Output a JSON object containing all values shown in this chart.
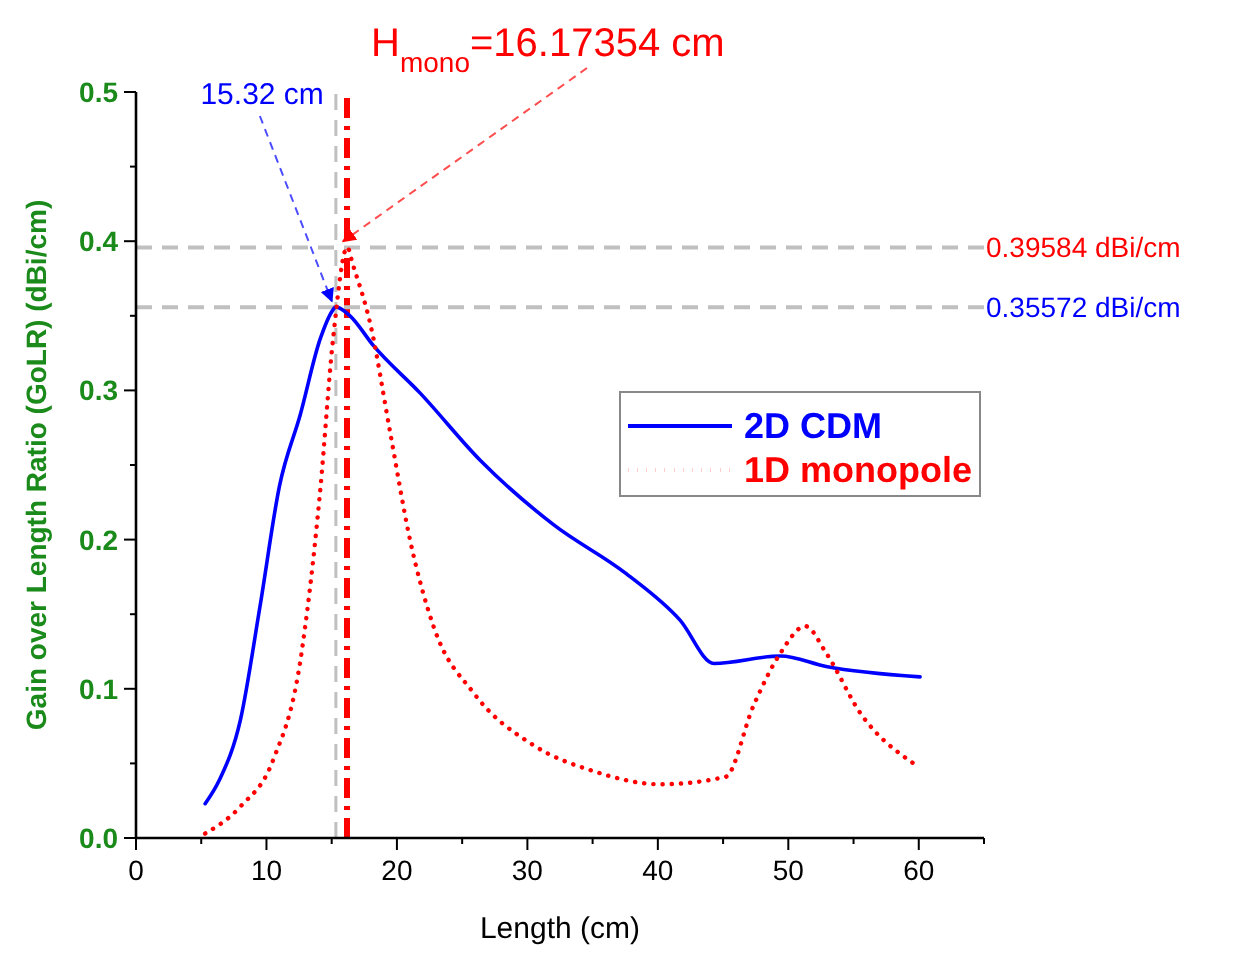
{
  "chart_data": {
    "type": "line",
    "xlabel": "Length (cm)",
    "ylabel": "Gain over Length Ratio (GoLR) (dBi/cm)",
    "xlim": [
      0,
      65
    ],
    "ylim": [
      0,
      0.5
    ],
    "xticks": [
      0,
      {
        "value": 5,
        "label": null
      },
      10,
      {
        "value": 15,
        "label": null
      },
      20,
      {
        "value": 25,
        "label": null
      },
      30,
      {
        "value": 35,
        "label": null
      },
      40,
      {
        "value": 45,
        "label": null
      },
      50,
      {
        "value": 55,
        "label": null
      },
      60,
      {
        "value": 65,
        "label": null
      }
    ],
    "yticks": [
      {
        "value": 0,
        "label": "0.0"
      },
      {
        "value": 0.05,
        "label": null
      },
      0.1,
      {
        "value": 0.15,
        "label": null
      },
      0.2,
      {
        "value": 0.25,
        "label": null
      },
      0.3,
      {
        "value": 0.35,
        "label": null
      },
      0.4,
      {
        "value": 0.45,
        "label": null
      },
      0.5
    ],
    "legend": "right",
    "grid": false,
    "series": [
      {
        "name": "2D CDM",
        "color": "#0000ff",
        "line_style": "solid",
        "x": [
          5.3,
          6.4,
          8.0,
          9.5,
          11.0,
          12.6,
          14.1,
          15.1,
          15.3,
          16.4,
          18.2,
          21.8,
          26.4,
          32.0,
          37.6,
          41.7,
          44.3,
          49.4,
          52.9,
          60.1
        ],
        "values": [
          0.023,
          0.039,
          0.079,
          0.155,
          0.236,
          0.284,
          0.334,
          0.354,
          0.356,
          0.35,
          0.33,
          0.298,
          0.253,
          0.21,
          0.177,
          0.146,
          0.117,
          0.122,
          0.115,
          0.108
        ]
      },
      {
        "name": "1D monopole",
        "color": "#ff0000",
        "line_style": "dotted",
        "x": [
          5.3,
          8.0,
          10.5,
          12.6,
          14.1,
          15.1,
          16.2,
          16.6,
          18.0,
          19.5,
          21.0,
          22.8,
          25.9,
          30.5,
          35.0,
          40.2,
          45.2,
          47.3,
          49.4,
          51.3,
          52.9,
          55.5,
          59.6
        ],
        "values": [
          0.003,
          0.021,
          0.052,
          0.119,
          0.231,
          0.334,
          0.396,
          0.385,
          0.343,
          0.271,
          0.2,
          0.142,
          0.097,
          0.062,
          0.045,
          0.036,
          0.041,
          0.088,
          0.124,
          0.142,
          0.124,
          0.084,
          0.05
        ]
      }
    ],
    "ref_lines": [
      {
        "axis": "x",
        "value": 15.32,
        "label": "15.32 cm",
        "color": "#c0c0c0",
        "line_style": "dashed"
      },
      {
        "axis": "x",
        "value": 16.17354,
        "label": "H$_{mono}$=16.17354 cm",
        "color": "#ff0000",
        "line_style": "dashdot"
      },
      {
        "axis": "y",
        "value": 0.35572,
        "label": "0.35572 dBi/cm",
        "color": "#c0c0c0",
        "line_style": "dashed"
      },
      {
        "axis": "y",
        "value": 0.39584,
        "label": "0.39584 dBi/cm",
        "color": "#c0c0c0",
        "line_style": "dashed"
      }
    ]
  }
}
